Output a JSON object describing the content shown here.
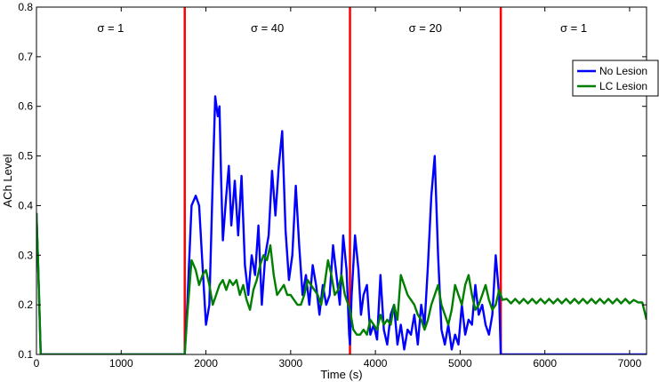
{
  "chart_data": {
    "type": "line",
    "xlabel": "Time (s)",
    "ylabel": "ACh Level",
    "xlim": [
      0,
      7200
    ],
    "ylim": [
      0.1,
      0.8
    ],
    "xticks": [
      0,
      1000,
      2000,
      3000,
      4000,
      5000,
      6000,
      7000
    ],
    "yticks": [
      0.1,
      0.2,
      0.3,
      0.4,
      0.5,
      0.6,
      0.7,
      0.8
    ],
    "xtick_labels": [
      "0",
      "1000",
      "2000",
      "3000",
      "4000",
      "5000",
      "6000",
      "7000"
    ],
    "ytick_labels": [
      "0.1",
      "0.2",
      "0.3",
      "0.4",
      "0.5",
      "0.6",
      "0.7",
      "0.8"
    ],
    "grid": false,
    "legend_position": "top-right",
    "boundaries": [
      1750,
      3700,
      5480
    ],
    "boundary_color": "#ff0000",
    "regions": [
      {
        "label": "σ = 1",
        "x": 875
      },
      {
        "label": "σ = 40",
        "x": 2725
      },
      {
        "label": "σ = 20",
        "x": 4590
      },
      {
        "label": "σ = 1",
        "x": 6340
      }
    ],
    "series": [
      {
        "name": "No Lesion",
        "color": "#0000ff",
        "x": [
          0,
          20,
          50,
          80,
          1750,
          1780,
          1830,
          1880,
          1920,
          1960,
          2000,
          2040,
          2080,
          2110,
          2140,
          2160,
          2180,
          2200,
          2240,
          2270,
          2300,
          2340,
          2380,
          2420,
          2460,
          2500,
          2540,
          2580,
          2620,
          2660,
          2700,
          2740,
          2780,
          2820,
          2860,
          2900,
          2940,
          2980,
          3020,
          3060,
          3100,
          3140,
          3180,
          3220,
          3260,
          3300,
          3340,
          3380,
          3420,
          3460,
          3500,
          3540,
          3580,
          3620,
          3660,
          3690,
          3700,
          3720,
          3760,
          3800,
          3830,
          3860,
          3900,
          3940,
          3980,
          4020,
          4060,
          4100,
          4140,
          4180,
          4220,
          4260,
          4300,
          4340,
          4380,
          4420,
          4460,
          4500,
          4540,
          4580,
          4620,
          4660,
          4700,
          4740,
          4780,
          4820,
          4860,
          4900,
          4940,
          4980,
          5020,
          5060,
          5100,
          5140,
          5180,
          5220,
          5260,
          5300,
          5340,
          5380,
          5420,
          5460,
          5480,
          5500,
          7200
        ],
        "values": [
          0.385,
          0.28,
          0.1,
          0.1,
          0.1,
          0.2,
          0.4,
          0.42,
          0.4,
          0.28,
          0.16,
          0.2,
          0.45,
          0.62,
          0.58,
          0.6,
          0.45,
          0.33,
          0.42,
          0.48,
          0.36,
          0.45,
          0.34,
          0.46,
          0.28,
          0.22,
          0.3,
          0.26,
          0.36,
          0.2,
          0.3,
          0.34,
          0.47,
          0.38,
          0.48,
          0.55,
          0.35,
          0.25,
          0.3,
          0.44,
          0.32,
          0.22,
          0.26,
          0.2,
          0.28,
          0.24,
          0.18,
          0.24,
          0.2,
          0.22,
          0.32,
          0.26,
          0.2,
          0.34,
          0.27,
          0.14,
          0.12,
          0.22,
          0.34,
          0.27,
          0.18,
          0.22,
          0.24,
          0.14,
          0.16,
          0.13,
          0.26,
          0.15,
          0.12,
          0.18,
          0.2,
          0.12,
          0.16,
          0.11,
          0.15,
          0.14,
          0.18,
          0.12,
          0.2,
          0.16,
          0.28,
          0.42,
          0.5,
          0.3,
          0.15,
          0.12,
          0.16,
          0.11,
          0.14,
          0.12,
          0.2,
          0.14,
          0.17,
          0.16,
          0.24,
          0.18,
          0.2,
          0.16,
          0.14,
          0.18,
          0.3,
          0.22,
          0.1,
          0.1,
          0.1
        ]
      },
      {
        "name": "LC Lesion",
        "color": "#007f00",
        "x": [
          0,
          20,
          50,
          80,
          1750,
          1780,
          1830,
          1880,
          1920,
          1960,
          2000,
          2040,
          2080,
          2120,
          2160,
          2200,
          2240,
          2280,
          2320,
          2360,
          2400,
          2440,
          2480,
          2520,
          2560,
          2600,
          2640,
          2680,
          2720,
          2760,
          2800,
          2840,
          2880,
          2920,
          2960,
          3000,
          3040,
          3080,
          3120,
          3160,
          3200,
          3240,
          3280,
          3320,
          3360,
          3400,
          3440,
          3480,
          3520,
          3560,
          3600,
          3640,
          3680,
          3700,
          3740,
          3780,
          3820,
          3860,
          3900,
          3940,
          3980,
          4020,
          4060,
          4100,
          4140,
          4180,
          4220,
          4260,
          4300,
          4340,
          4380,
          4420,
          4460,
          4500,
          4540,
          4580,
          4620,
          4660,
          4700,
          4740,
          4780,
          4820,
          4860,
          4900,
          4940,
          4980,
          5020,
          5060,
          5100,
          5140,
          5180,
          5220,
          5260,
          5300,
          5340,
          5380,
          5420,
          5460,
          5500,
          5550,
          5600,
          5650,
          5700,
          5750,
          5800,
          5850,
          5900,
          5950,
          6000,
          6050,
          6100,
          6150,
          6200,
          6250,
          6300,
          6350,
          6400,
          6450,
          6500,
          6550,
          6600,
          6650,
          6700,
          6750,
          6800,
          6850,
          6900,
          6950,
          7000,
          7050,
          7100,
          7150,
          7200
        ],
        "values": [
          0.385,
          0.28,
          0.1,
          0.1,
          0.1,
          0.18,
          0.29,
          0.27,
          0.24,
          0.26,
          0.27,
          0.24,
          0.2,
          0.22,
          0.24,
          0.25,
          0.23,
          0.25,
          0.24,
          0.25,
          0.22,
          0.24,
          0.21,
          0.19,
          0.23,
          0.25,
          0.28,
          0.3,
          0.29,
          0.32,
          0.26,
          0.22,
          0.23,
          0.24,
          0.22,
          0.22,
          0.21,
          0.2,
          0.2,
          0.22,
          0.25,
          0.24,
          0.23,
          0.22,
          0.2,
          0.24,
          0.29,
          0.26,
          0.22,
          0.23,
          0.26,
          0.22,
          0.2,
          0.19,
          0.15,
          0.14,
          0.14,
          0.15,
          0.14,
          0.17,
          0.16,
          0.15,
          0.18,
          0.16,
          0.17,
          0.16,
          0.2,
          0.17,
          0.26,
          0.24,
          0.22,
          0.21,
          0.2,
          0.18,
          0.17,
          0.15,
          0.17,
          0.2,
          0.22,
          0.24,
          0.2,
          0.18,
          0.16,
          0.19,
          0.24,
          0.22,
          0.2,
          0.24,
          0.26,
          0.22,
          0.19,
          0.2,
          0.22,
          0.24,
          0.21,
          0.19,
          0.2,
          0.23,
          0.21,
          0.212,
          0.203,
          0.212,
          0.203,
          0.212,
          0.203,
          0.212,
          0.203,
          0.212,
          0.203,
          0.212,
          0.203,
          0.212,
          0.203,
          0.212,
          0.203,
          0.212,
          0.203,
          0.212,
          0.203,
          0.212,
          0.203,
          0.212,
          0.203,
          0.212,
          0.203,
          0.212,
          0.203,
          0.212,
          0.203,
          0.21,
          0.205,
          0.205,
          0.17
        ]
      }
    ]
  }
}
